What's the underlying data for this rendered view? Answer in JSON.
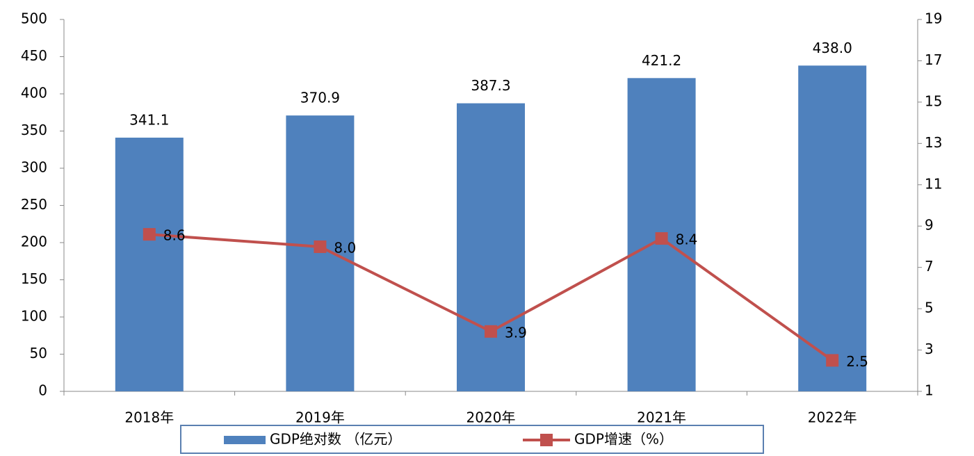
{
  "chart_data": {
    "type": "bar",
    "categories": [
      "2018年",
      "2019年",
      "2020年",
      "2021年",
      "2022年"
    ],
    "series": [
      {
        "name": "GDP绝对数 （亿元）",
        "type": "bar",
        "color": "#4f81bd",
        "values": [
          341.1,
          370.9,
          387.3,
          421.2,
          438
        ],
        "value_labels": [
          "341.1",
          "370.9",
          "387.3",
          "421.2",
          "438.0"
        ]
      },
      {
        "name": "GDP增速（%）",
        "type": "line",
        "axis": "y2",
        "color": "#c0504d",
        "values": [
          8.6,
          8,
          3.9,
          8.4,
          2.5
        ],
        "value_labels": [
          "8.6",
          "8.0",
          "3.9",
          "8.4",
          "2.5"
        ]
      }
    ],
    "ylim": [
      0,
      500
    ],
    "yticks": [
      0,
      50,
      100,
      150,
      200,
      250,
      300,
      350,
      400,
      450,
      500
    ],
    "y2lim": [
      1,
      19
    ],
    "y2ticks": [
      1,
      3,
      5,
      7,
      9,
      11,
      13,
      15,
      17,
      19
    ],
    "grid": false,
    "legend": "bottom"
  }
}
